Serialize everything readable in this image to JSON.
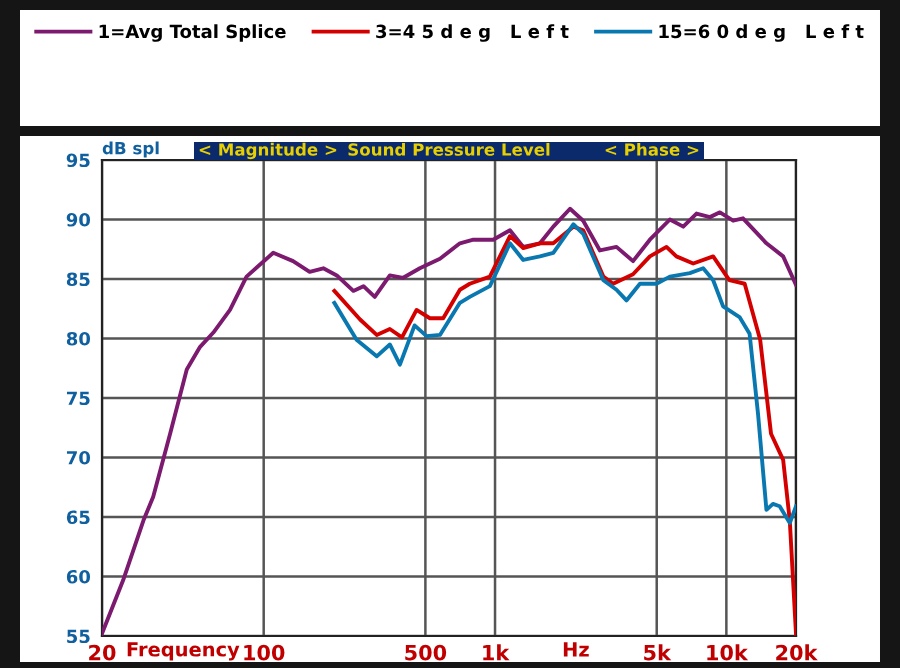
{
  "chart_data": {
    "type": "line",
    "ylabel": "dB spl",
    "xlabel": "Frequency",
    "log": "x",
    "xlim": [
      20,
      20000
    ],
    "ylim": [
      55,
      95
    ],
    "xticks": [
      20,
      100,
      500,
      {
        "value": 1000,
        "label": "1k"
      },
      {
        "value": 5000,
        "label": "5k"
      },
      {
        "value": 10000,
        "label": "10k"
      },
      {
        "value": 20000,
        "label": "20k"
      }
    ],
    "yticks": [
      55,
      60,
      65,
      70,
      75,
      80,
      85,
      90,
      95
    ],
    "grid": true,
    "legend": "top",
    "line_style": "solid",
    "marker": "none",
    "annotations": [
      "Hz",
      "< Magnitude >",
      "Sound Pressure Level",
      "< Phase >"
    ],
    "series": [
      {
        "name": "1=Avg Total Splice",
        "color": "#7b1a6e",
        "x": [
          20,
          24.7,
          30.2,
          33.3,
          39.4,
          46.5,
          53.1,
          60.6,
          71.5,
          84.3,
          110,
          134,
          158,
          181,
          207,
          244,
          270,
          302,
          351,
          401,
          473,
          578,
          705,
          806,
          982,
          1160,
          1324,
          1564,
          1786,
          2110,
          2405,
          2840,
          3350,
          3950,
          4670,
          5700,
          6510,
          7430,
          8490,
          9380,
          10700,
          11800,
          14900,
          17600,
          20000
        ],
        "values": [
          55.2,
          59.7,
          64.7,
          66.7,
          72.0,
          77.4,
          79.3,
          80.5,
          82.4,
          85.2,
          87.2,
          86.5,
          85.6,
          85.9,
          85.3,
          84.0,
          84.4,
          83.5,
          85.3,
          85.1,
          85.9,
          86.7,
          88.0,
          88.3,
          88.3,
          89.1,
          87.7,
          88.0,
          89.4,
          90.9,
          89.9,
          87.4,
          87.7,
          86.5,
          88.3,
          90.0,
          89.4,
          90.5,
          90.2,
          90.6,
          89.9,
          90.1,
          88.0,
          86.9,
          84.5
        ]
      },
      {
        "name": "3=4 5 d e g   L e f t",
        "color": "#d40000",
        "x": [
          202,
          261,
          308,
          351,
          396,
          458,
          523,
          597,
          705,
          778,
          950,
          1160,
          1324,
          1564,
          1786,
          2180,
          2405,
          2940,
          3240,
          3950,
          4670,
          5510,
          6080,
          7190,
          8770,
          10300,
          12000,
          14000,
          15600,
          17600,
          18800,
          20000
        ],
        "values": [
          84.0,
          81.6,
          80.3,
          80.8,
          80.1,
          82.4,
          81.7,
          81.7,
          84.1,
          84.6,
          85.2,
          88.6,
          87.6,
          88.0,
          88.0,
          89.4,
          89.1,
          85.2,
          84.6,
          85.4,
          86.9,
          87.7,
          86.9,
          86.3,
          86.9,
          84.9,
          84.6,
          79.9,
          72.0,
          69.8,
          64.7,
          55.2
        ]
      },
      {
        "name": "15=6 0 d e g   L e f t",
        "color": "#0a78b0",
        "x": [
          202,
          252,
          308,
          351,
          388,
          449,
          506,
          578,
          705,
          778,
          950,
          1160,
          1324,
          1564,
          1786,
          2180,
          2405,
          2940,
          3350,
          3700,
          4230,
          4990,
          5700,
          6950,
          7940,
          8770,
          9680,
          11400,
          12600,
          13700,
          14900,
          15900,
          17000,
          18800,
          20000
        ],
        "values": [
          83.0,
          79.9,
          78.5,
          79.5,
          77.8,
          81.1,
          80.2,
          80.3,
          83.0,
          83.5,
          84.4,
          88.0,
          86.6,
          86.9,
          87.2,
          89.6,
          88.8,
          84.9,
          84.1,
          83.2,
          84.6,
          84.6,
          85.2,
          85.5,
          85.9,
          84.9,
          82.7,
          81.8,
          80.4,
          73.7,
          65.6,
          66.1,
          65.9,
          64.5,
          65.9
        ]
      }
    ]
  }
}
